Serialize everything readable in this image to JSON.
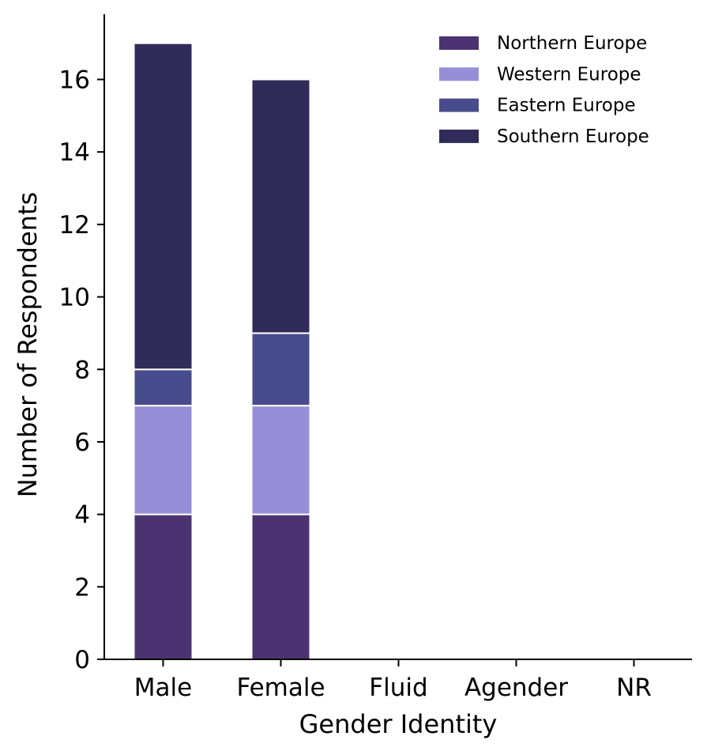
{
  "chart_data": {
    "type": "bar",
    "stacked": true,
    "categories": [
      "Male",
      "Female",
      "Fluid",
      "Agender",
      "NR"
    ],
    "series": [
      {
        "name": "Northern Europe",
        "color": "#4b3371",
        "values": [
          4,
          4,
          0,
          0,
          0
        ]
      },
      {
        "name": "Western Europe",
        "color": "#968fd8",
        "values": [
          3,
          3,
          0,
          0,
          0
        ]
      },
      {
        "name": "Eastern Europe",
        "color": "#484c8c",
        "values": [
          1,
          2,
          0,
          0,
          0
        ]
      },
      {
        "name": "Southern Europe",
        "color": "#302b58",
        "values": [
          9,
          7,
          0,
          0,
          0
        ]
      }
    ],
    "title": "",
    "xlabel": "Gender Identity",
    "ylabel": "Number of Respondents",
    "ylim": [
      0,
      17.8
    ],
    "yticks": [
      0,
      2,
      4,
      6,
      8,
      10,
      12,
      14,
      16
    ],
    "grid": false,
    "legend_position": "top-right"
  }
}
